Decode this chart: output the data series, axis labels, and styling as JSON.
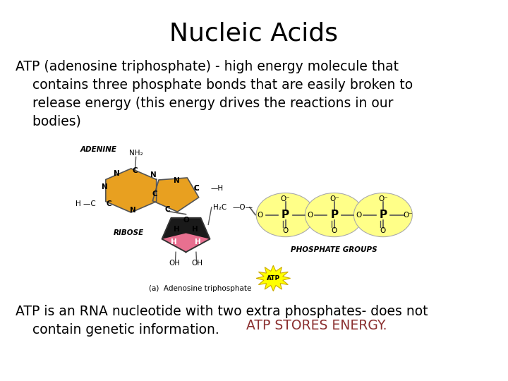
{
  "title": "Nucleic Acids",
  "title_fontsize": 26,
  "title_color": "#000000",
  "bg_color": "#ffffff",
  "para1_line1": "ATP (adenosine triphosphate) - high energy molecule that",
  "para1_line2": "    contains three phosphate bonds that are easily broken to",
  "para1_line3": "    release energy (this energy drives the reactions in our",
  "para1_line4": "    bodies)",
  "para1_fontsize": 13.5,
  "para1_color": "#000000",
  "para2_prefix": "ATP is an RNA nucleotide with two extra phosphates- does not\n    contain genetic information. ",
  "para2_colored": "ATP STORES ENERGY.",
  "para2_color_prefix": "#000000",
  "para2_color_highlight": "#8B3030",
  "para2_fontsize": 13.5,
  "adenine_color": "#E8A020",
  "ribose_color_top": "#E87090",
  "ribose_color_bottom": "#1a1a1a",
  "phosphate_circle_color": "#FFFF88",
  "phosphate_P_color": "#000000",
  "adenine_label_color": "#000000",
  "ribose_label_color": "#000000",
  "phosphate_label_color": "#000000",
  "line_color": "#888888",
  "atp_starburst_color": "#FFFF00",
  "atp_text_color": "#000000"
}
